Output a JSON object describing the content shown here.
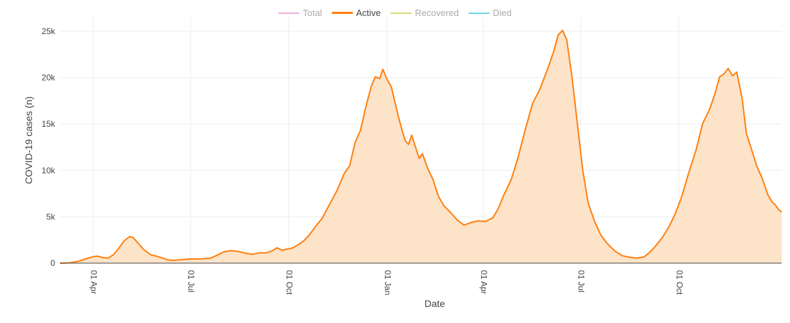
{
  "chart_data": {
    "type": "area",
    "xlabel": "Date",
    "ylabel": "COVID-19 cases (n)",
    "ylim": [
      0,
      26500
    ],
    "x_range": [
      "2020-03-01",
      "2022-01-05"
    ],
    "grid": true,
    "legend_placement": "top-center",
    "x_ticks": [
      {
        "date": "2020-04-01",
        "label": "01 Apr"
      },
      {
        "date": "2020-07-01",
        "label": "01 Jul"
      },
      {
        "date": "2020-10-01",
        "label": "01 Oct"
      },
      {
        "date": "2021-01-01",
        "label": "01 Jan"
      },
      {
        "date": "2021-04-01",
        "label": "01 Apr"
      },
      {
        "date": "2021-07-01",
        "label": "01 Jul"
      },
      {
        "date": "2021-10-01",
        "label": "01 Oct"
      }
    ],
    "y_ticks": [
      {
        "value": 0,
        "label": "0"
      },
      {
        "value": 5000,
        "label": "5k"
      },
      {
        "value": 10000,
        "label": "10k"
      },
      {
        "value": 15000,
        "label": "15k"
      },
      {
        "value": 20000,
        "label": "20k"
      },
      {
        "value": 25000,
        "label": "25k"
      }
    ],
    "legend": [
      {
        "name": "Total",
        "color": "#e377c2",
        "visible": false
      },
      {
        "name": "Active",
        "color": "#ff7f0e",
        "visible": true
      },
      {
        "name": "Recovered",
        "color": "#bcbd22",
        "visible": false
      },
      {
        "name": "Died",
        "color": "#17becf",
        "visible": false
      }
    ],
    "series": [
      {
        "name": "Active",
        "color": "#ff7f0e",
        "fill": "#fde3c8",
        "points": [
          [
            "2020-03-01",
            0
          ],
          [
            "2020-03-10",
            30
          ],
          [
            "2020-03-18",
            200
          ],
          [
            "2020-03-25",
            450
          ],
          [
            "2020-04-01",
            700
          ],
          [
            "2020-04-05",
            750
          ],
          [
            "2020-04-10",
            600
          ],
          [
            "2020-04-15",
            550
          ],
          [
            "2020-04-20",
            900
          ],
          [
            "2020-04-25",
            1600
          ],
          [
            "2020-04-30",
            2400
          ],
          [
            "2020-05-05",
            2850
          ],
          [
            "2020-05-08",
            2800
          ],
          [
            "2020-05-12",
            2300
          ],
          [
            "2020-05-18",
            1500
          ],
          [
            "2020-05-25",
            900
          ],
          [
            "2020-06-01",
            700
          ],
          [
            "2020-06-10",
            350
          ],
          [
            "2020-06-15",
            300
          ],
          [
            "2020-06-20",
            350
          ],
          [
            "2020-07-01",
            450
          ],
          [
            "2020-07-10",
            450
          ],
          [
            "2020-07-20",
            550
          ],
          [
            "2020-07-25",
            800
          ],
          [
            "2020-08-01",
            1200
          ],
          [
            "2020-08-08",
            1350
          ],
          [
            "2020-08-15",
            1250
          ],
          [
            "2020-08-22",
            1050
          ],
          [
            "2020-08-28",
            950
          ],
          [
            "2020-09-03",
            1100
          ],
          [
            "2020-09-10",
            1100
          ],
          [
            "2020-09-15",
            1300
          ],
          [
            "2020-09-20",
            1650
          ],
          [
            "2020-09-25",
            1400
          ],
          [
            "2020-10-01",
            1550
          ],
          [
            "2020-10-05",
            1650
          ],
          [
            "2020-10-10",
            2000
          ],
          [
            "2020-10-15",
            2400
          ],
          [
            "2020-10-20",
            3000
          ],
          [
            "2020-10-25",
            3800
          ],
          [
            "2020-11-01",
            4800
          ],
          [
            "2020-11-08",
            6300
          ],
          [
            "2020-11-15",
            7800
          ],
          [
            "2020-11-22",
            9700
          ],
          [
            "2020-11-27",
            10500
          ],
          [
            "2020-12-02",
            13000
          ],
          [
            "2020-12-07",
            14300
          ],
          [
            "2020-12-12",
            16800
          ],
          [
            "2020-12-17",
            19000
          ],
          [
            "2020-12-21",
            20100
          ],
          [
            "2020-12-25",
            19900
          ],
          [
            "2020-12-28",
            20900
          ],
          [
            "2021-01-01",
            19800
          ],
          [
            "2021-01-05",
            19000
          ],
          [
            "2021-01-08",
            17500
          ],
          [
            "2021-01-12",
            15600
          ],
          [
            "2021-01-15",
            14300
          ],
          [
            "2021-01-18",
            13200
          ],
          [
            "2021-01-21",
            12800
          ],
          [
            "2021-01-24",
            13800
          ],
          [
            "2021-01-27",
            12700
          ],
          [
            "2021-01-31",
            11300
          ],
          [
            "2021-02-03",
            11800
          ],
          [
            "2021-02-08",
            10200
          ],
          [
            "2021-02-13",
            9000
          ],
          [
            "2021-02-18",
            7200
          ],
          [
            "2021-02-23",
            6200
          ],
          [
            "2021-03-01",
            5500
          ],
          [
            "2021-03-08",
            4600
          ],
          [
            "2021-03-14",
            4100
          ],
          [
            "2021-03-21",
            4400
          ],
          [
            "2021-03-27",
            4550
          ],
          [
            "2021-04-03",
            4500
          ],
          [
            "2021-04-10",
            4900
          ],
          [
            "2021-04-15",
            5900
          ],
          [
            "2021-04-20",
            7300
          ],
          [
            "2021-04-27",
            9000
          ],
          [
            "2021-05-03",
            11200
          ],
          [
            "2021-05-10",
            14300
          ],
          [
            "2021-05-17",
            17200
          ],
          [
            "2021-05-24",
            18800
          ],
          [
            "2021-05-31",
            20900
          ],
          [
            "2021-06-06",
            22900
          ],
          [
            "2021-06-10",
            24600
          ],
          [
            "2021-06-14",
            25100
          ],
          [
            "2021-06-18",
            24100
          ],
          [
            "2021-06-23",
            20000
          ],
          [
            "2021-06-28",
            15000
          ],
          [
            "2021-07-03",
            10000
          ],
          [
            "2021-07-08",
            6500
          ],
          [
            "2021-07-14",
            4500
          ],
          [
            "2021-07-20",
            3000
          ],
          [
            "2021-07-26",
            2100
          ],
          [
            "2021-08-02",
            1300
          ],
          [
            "2021-08-09",
            800
          ],
          [
            "2021-08-15",
            650
          ],
          [
            "2021-08-22",
            550
          ],
          [
            "2021-08-29",
            650
          ],
          [
            "2021-09-03",
            1100
          ],
          [
            "2021-09-08",
            1700
          ],
          [
            "2021-09-15",
            2700
          ],
          [
            "2021-09-21",
            3800
          ],
          [
            "2021-09-27",
            5200
          ],
          [
            "2021-10-03",
            7000
          ],
          [
            "2021-10-10",
            9700
          ],
          [
            "2021-10-17",
            12200
          ],
          [
            "2021-10-23",
            15000
          ],
          [
            "2021-10-30",
            16700
          ],
          [
            "2021-11-04",
            18400
          ],
          [
            "2021-11-08",
            20100
          ],
          [
            "2021-11-12",
            20400
          ],
          [
            "2021-11-16",
            21000
          ],
          [
            "2021-11-20",
            20200
          ],
          [
            "2021-11-24",
            20600
          ],
          [
            "2021-11-29",
            17800
          ],
          [
            "2021-12-03",
            14000
          ],
          [
            "2021-12-08",
            12200
          ],
          [
            "2021-12-13",
            10400
          ],
          [
            "2021-12-18",
            9100
          ],
          [
            "2021-12-23",
            7400
          ],
          [
            "2021-12-27",
            6600
          ],
          [
            "2021-12-30",
            6300
          ],
          [
            "2022-01-02",
            5800
          ],
          [
            "2022-01-05",
            5500
          ]
        ]
      }
    ]
  }
}
